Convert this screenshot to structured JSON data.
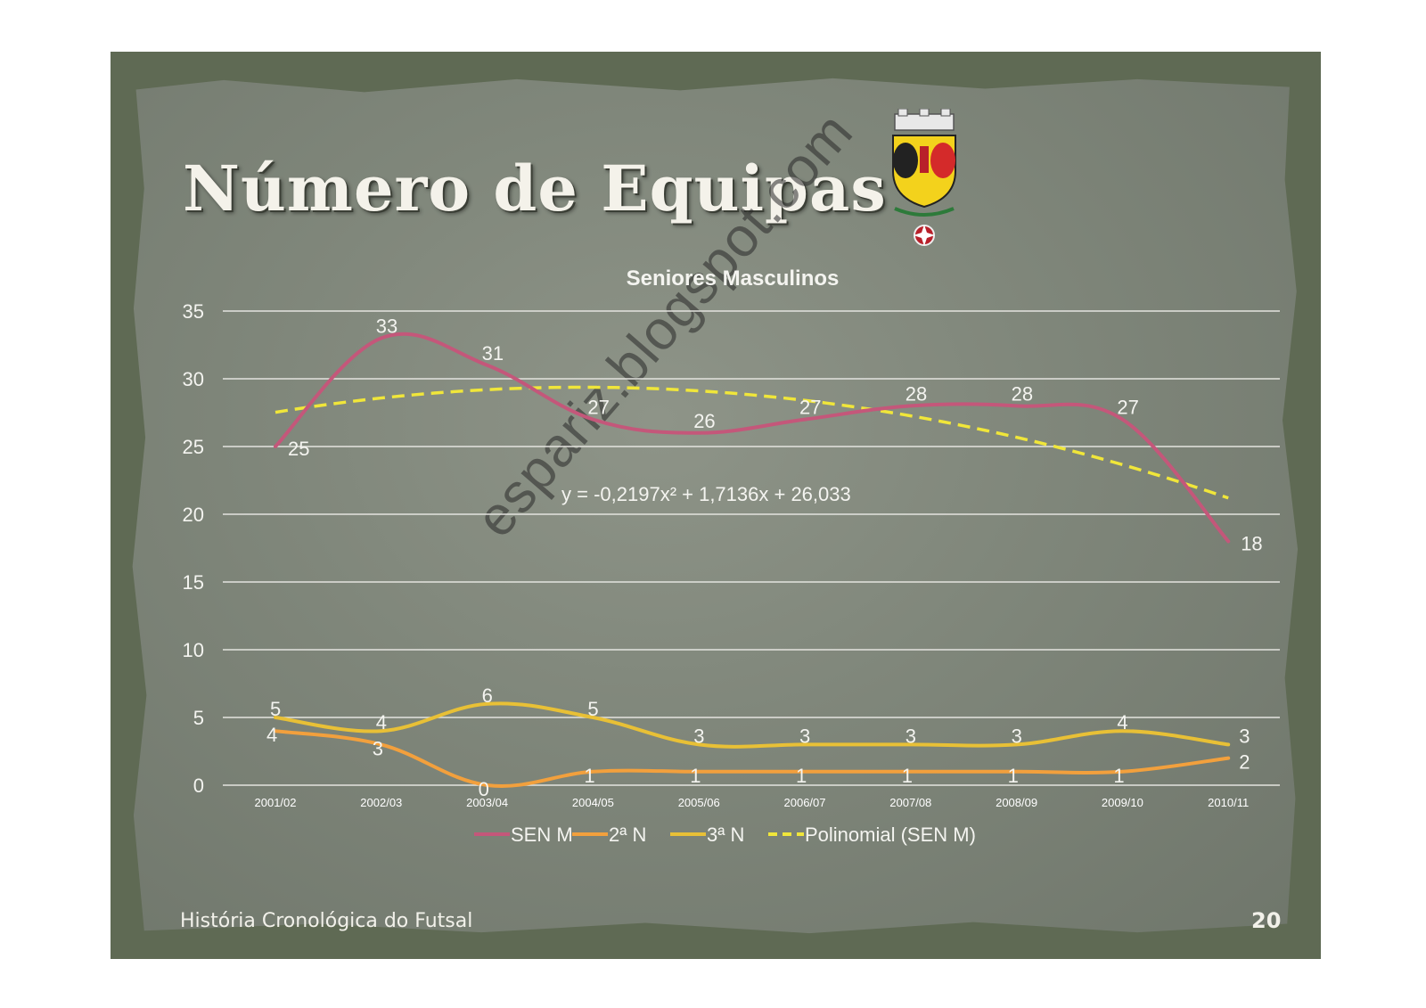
{
  "slide": {
    "title": "Número de Equipas",
    "footer": "História Cronológica do Futsal",
    "page_number": "20",
    "watermark": "espariz.blogspot.com"
  },
  "colors": {
    "sen_m": "#c4577a",
    "n2": "#f2a03d",
    "n3": "#e8c036",
    "trend": "#f0e63a"
  },
  "chart_data": {
    "type": "line",
    "title": "Seniores Masculinos",
    "categories": [
      "2001/02",
      "2002/03",
      "2003/04",
      "2004/05",
      "2005/06",
      "2006/07",
      "2007/08",
      "2008/09",
      "2009/10",
      "2010/11"
    ],
    "series": [
      {
        "name": "SEN M",
        "values": [
          25,
          33,
          31,
          27,
          26,
          27,
          28,
          28,
          27,
          18
        ],
        "color": "#c4577a"
      },
      {
        "name": "2ª N",
        "values": [
          4,
          3,
          0,
          1,
          1,
          1,
          1,
          1,
          1,
          2
        ],
        "color": "#f2a03d"
      },
      {
        "name": "3ª N",
        "values": [
          5,
          4,
          6,
          5,
          3,
          3,
          3,
          3,
          4,
          3
        ],
        "color": "#e8c036"
      }
    ],
    "trendline": {
      "name": "Polinomial (SEN M)",
      "equation": "y = -0,2197x² + 1,7136x + 26,033",
      "a": -0.2197,
      "b": 1.7136,
      "c": 26.033,
      "color": "#f0e63a"
    },
    "ylim": [
      0,
      35
    ],
    "yticks": [
      "0",
      "5",
      "10",
      "15",
      "20",
      "25",
      "30",
      "35"
    ],
    "grid": true,
    "legend": "bottom"
  }
}
